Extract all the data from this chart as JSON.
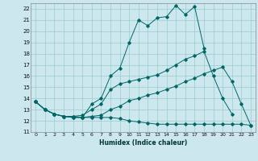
{
  "xlabel": "Humidex (Indice chaleur)",
  "background_color": "#cce8ee",
  "grid_color": "#99cccc",
  "line_color": "#006666",
  "xlim": [
    -0.5,
    23.5
  ],
  "ylim": [
    11,
    22.5
  ],
  "yticks": [
    11,
    12,
    13,
    14,
    15,
    16,
    17,
    18,
    19,
    20,
    21,
    22
  ],
  "xticks": [
    0,
    1,
    2,
    3,
    4,
    5,
    6,
    7,
    8,
    9,
    10,
    11,
    12,
    13,
    14,
    15,
    16,
    17,
    18,
    19,
    20,
    21,
    22,
    23
  ],
  "series": [
    {
      "x": [
        0,
        1,
        2,
        3,
        4,
        5,
        6,
        7,
        8,
        9,
        10,
        11,
        12,
        13,
        14,
        15,
        16,
        17,
        18
      ],
      "y": [
        13.7,
        13.0,
        12.6,
        12.4,
        12.4,
        12.3,
        13.5,
        14.0,
        16.0,
        16.7,
        19.0,
        21.0,
        20.5,
        21.2,
        21.3,
        22.3,
        21.5,
        22.2,
        18.5
      ]
    },
    {
      "x": [
        0,
        1,
        2,
        3,
        4,
        5,
        6,
        7,
        8,
        9,
        10,
        11,
        12,
        13,
        14,
        15,
        16,
        17,
        18,
        19,
        20,
        21
      ],
      "y": [
        13.7,
        13.0,
        12.6,
        12.4,
        12.4,
        12.5,
        13.0,
        13.5,
        14.8,
        15.3,
        15.5,
        15.7,
        15.9,
        16.1,
        16.5,
        17.0,
        17.5,
        17.8,
        18.2,
        16.0,
        14.0,
        12.6
      ]
    },
    {
      "x": [
        0,
        1,
        2,
        3,
        4,
        5,
        6,
        7,
        8,
        9,
        10,
        11,
        12,
        13,
        14,
        15,
        16,
        17,
        18,
        19,
        20,
        21,
        22,
        23
      ],
      "y": [
        13.7,
        13.0,
        12.6,
        12.4,
        12.3,
        12.3,
        12.3,
        12.3,
        12.3,
        12.2,
        12.0,
        11.9,
        11.8,
        11.7,
        11.7,
        11.7,
        11.7,
        11.7,
        11.7,
        11.7,
        11.7,
        11.7,
        11.7,
        11.6
      ]
    },
    {
      "x": [
        0,
        1,
        2,
        3,
        4,
        5,
        6,
        7,
        8,
        9,
        10,
        11,
        12,
        13,
        14,
        15,
        16,
        17,
        18,
        19,
        20,
        21,
        22,
        23
      ],
      "y": [
        13.7,
        13.0,
        12.6,
        12.4,
        12.3,
        12.3,
        12.4,
        12.5,
        13.0,
        13.3,
        13.8,
        14.0,
        14.3,
        14.5,
        14.8,
        15.1,
        15.5,
        15.8,
        16.2,
        16.5,
        16.8,
        15.5,
        13.5,
        11.6
      ]
    }
  ]
}
